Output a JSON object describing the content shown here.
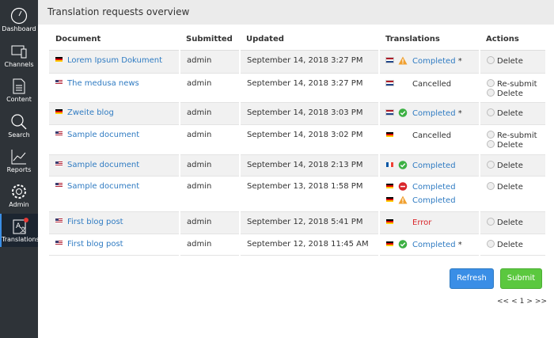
{
  "sidebar": {
    "items": [
      {
        "label": "Dashboard"
      },
      {
        "label": "Channels"
      },
      {
        "label": "Content"
      },
      {
        "label": "Search"
      },
      {
        "label": "Reports"
      },
      {
        "label": "Admin"
      },
      {
        "label": "Translations"
      }
    ]
  },
  "header": {
    "title": "Translation requests overview"
  },
  "table": {
    "headers": [
      "Document",
      "Submitted",
      "Updated",
      "Translations",
      "Actions"
    ],
    "rows": [
      {
        "document": "Lorem Ipsum Dokument",
        "submitted": "admin",
        "updated": "September 14, 2018 3:27 PM",
        "translations": [
          {
            "status": "Completed",
            "mark": "*"
          }
        ],
        "actions": [
          "Delete"
        ]
      },
      {
        "document": "The medusa news",
        "submitted": "admin",
        "updated": "September 14, 2018 3:27 PM",
        "translations": [
          {
            "status": "Cancelled"
          }
        ],
        "actions": [
          "Re-submit",
          "Delete"
        ]
      },
      {
        "document": "Zweite blog",
        "submitted": "admin",
        "updated": "September 14, 2018 3:03 PM",
        "translations": [
          {
            "status": "Completed",
            "mark": "*"
          }
        ],
        "actions": [
          "Delete"
        ]
      },
      {
        "document": "Sample document",
        "submitted": "admin",
        "updated": "September 14, 2018 3:02 PM",
        "translations": [
          {
            "status": "Cancelled"
          }
        ],
        "actions": [
          "Re-submit",
          "Delete"
        ]
      },
      {
        "document": "Sample document",
        "submitted": "admin",
        "updated": "September 14, 2018 2:13 PM",
        "translations": [
          {
            "status": "Completed"
          }
        ],
        "actions": [
          "Delete"
        ]
      },
      {
        "document": "Sample document",
        "submitted": "admin",
        "updated": "September 13, 2018 1:58 PM",
        "translations": [
          {
            "status": "Completed"
          },
          {
            "status": "Completed"
          }
        ],
        "actions": [
          "Delete"
        ]
      },
      {
        "document": "First blog post",
        "submitted": "admin",
        "updated": "September 12, 2018 5:41 PM",
        "translations": [
          {
            "status": "Error"
          }
        ],
        "actions": [
          "Delete"
        ]
      },
      {
        "document": "First blog post",
        "submitted": "admin",
        "updated": "September 12, 2018 11:45 AM",
        "translations": [
          {
            "status": "Completed",
            "mark": "*"
          }
        ],
        "actions": [
          "Delete"
        ]
      }
    ]
  },
  "buttons": {
    "refresh": "Refresh",
    "submit": "Submit"
  },
  "pagination": [
    "<<",
    "<",
    "1",
    ">",
    ">>"
  ]
}
